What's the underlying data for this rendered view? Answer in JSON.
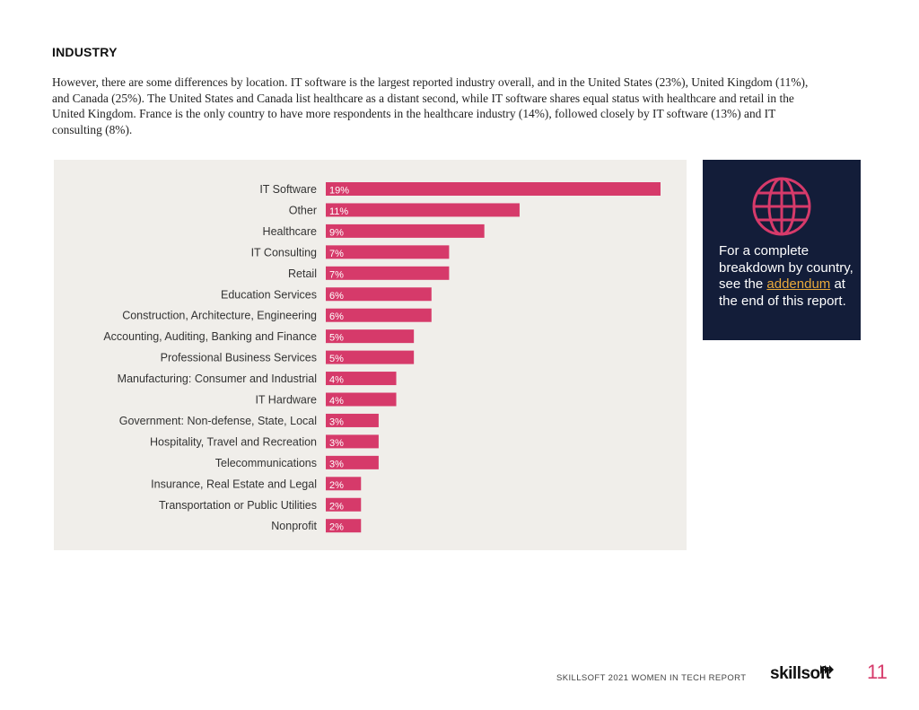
{
  "section": {
    "title": "INDUSTRY",
    "body": "However, there are some differences by location. IT software is the largest reported industry overall, and in the United States (23%), United Kingdom (11%), and Canada (25%). The United States and Canada list healthcare as a distant second, while IT software shares equal status with healthcare and retail in the United Kingdom. France is the only country to have more respondents in the healthcare industry (14%), followed closely by IT software (13%) and IT consulting (8%)."
  },
  "chart_data": {
    "type": "bar",
    "orientation": "horizontal",
    "categories": [
      "IT Software",
      "Other",
      "Healthcare",
      "IT Consulting",
      "Retail",
      "Education Services",
      "Construction, Architecture, Engineering",
      "Accounting, Auditing, Banking and Finance",
      "Professional Business Services",
      "Manufacturing: Consumer and Industrial",
      "IT Hardware",
      "Government: Non-defense, State, Local",
      "Hospitality, Travel and Recreation",
      "Telecommunications",
      "Insurance, Real Estate and Legal",
      "Transportation or Public Utilities",
      "Nonprofit"
    ],
    "values": [
      19,
      11,
      9,
      7,
      7,
      6,
      6,
      5,
      5,
      4,
      4,
      3,
      3,
      3,
      2,
      2,
      2
    ],
    "value_labels": [
      "19%",
      "11%",
      "9%",
      "7%",
      "7%",
      "6%",
      "6%",
      "5%",
      "5%",
      "4%",
      "4%",
      "3%",
      "3%",
      "3%",
      "2%",
      "2%",
      "2%"
    ],
    "unit": "%",
    "xlim": [
      0,
      19
    ],
    "grid": false,
    "bar_color": "#d63a6a"
  },
  "callout": {
    "icon": "globe-icon",
    "text_before": "For a complete breakdown by country, see the",
    "link_text": "addendum",
    "text_after": "at the end of this report.",
    "background": "#131d39",
    "link_color": "#e8a93a"
  },
  "footer": {
    "report_name": "SKILLSOFT 2021 WOMEN IN TECH REPORT",
    "logo_text": "skillsoft",
    "page_number": "11"
  },
  "colors": {
    "accent": "#d63a6a",
    "panel": "#f0eeea"
  }
}
